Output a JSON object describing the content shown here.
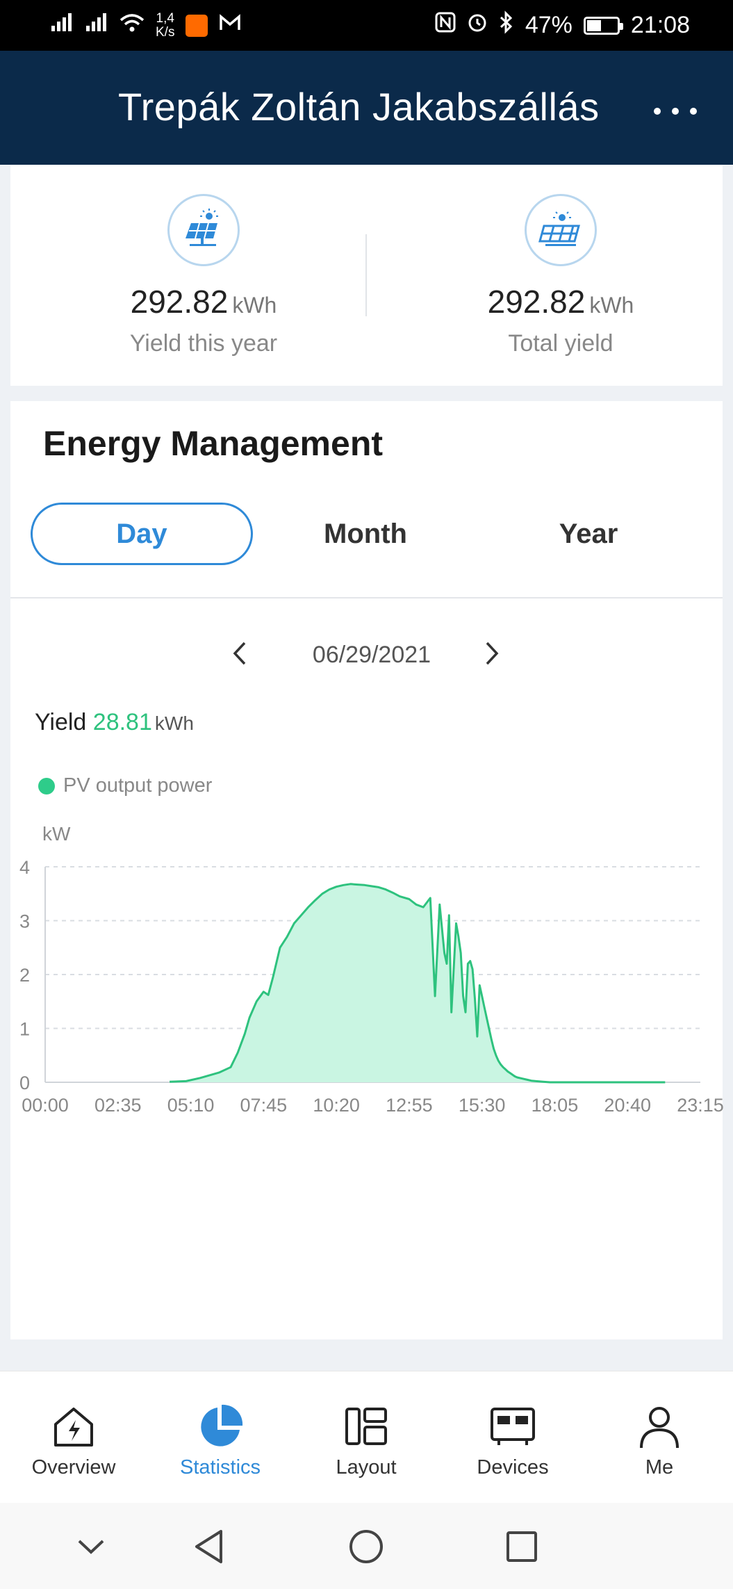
{
  "status_bar": {
    "net_speed_value": "1,4",
    "net_speed_unit": "K/s",
    "battery": "47%",
    "battery_level": 0.47,
    "time": "21:08"
  },
  "header": {
    "title": "Trepák Zoltán Jakabszállás",
    "more_icon": "more-horizontal-icon"
  },
  "yield_summary": {
    "this_year": {
      "value": "292.82",
      "unit": "kWh",
      "label": "Yield this year",
      "icon": "solar-panel-icon"
    },
    "total": {
      "value": "292.82",
      "unit": "kWh",
      "label": "Total yield",
      "icon": "solar-array-icon"
    }
  },
  "energy_management": {
    "title": "Energy Management",
    "tabs": [
      {
        "label": "Day",
        "active": true
      },
      {
        "label": "Month",
        "active": false
      },
      {
        "label": "Year",
        "active": false
      }
    ],
    "date": "06/29/2021",
    "yield_label": "Yield",
    "yield_value": "28.81",
    "yield_unit": "kWh"
  },
  "chart_data": {
    "type": "area",
    "ylabel": "kW",
    "ylim": [
      0,
      4
    ],
    "yticks": [
      "0",
      "1",
      "2",
      "3",
      "4"
    ],
    "xlim": [
      "00:00",
      "23:15"
    ],
    "xticks": [
      "00:00",
      "02:35",
      "05:10",
      "07:45",
      "10:20",
      "12:55",
      "15:30",
      "18:05",
      "20:40",
      "23:15"
    ],
    "grid": true,
    "series": [
      {
        "name": "PV output power",
        "color": "#2ec27e",
        "fill": "#c9f5e2",
        "x": [
          "04:25",
          "05:00",
          "05:30",
          "06:10",
          "06:35",
          "06:50",
          "07:05",
          "07:15",
          "07:30",
          "07:45",
          "07:55",
          "08:05",
          "08:20",
          "08:35",
          "08:50",
          "09:05",
          "09:20",
          "09:35",
          "09:50",
          "10:05",
          "10:20",
          "10:35",
          "10:50",
          "11:05",
          "11:20",
          "11:35",
          "11:50",
          "12:05",
          "12:20",
          "12:35",
          "12:55",
          "13:10",
          "13:25",
          "13:40",
          "13:50",
          "14:00",
          "14:10",
          "14:15",
          "14:20",
          "14:25",
          "14:35",
          "14:40",
          "14:45",
          "14:50",
          "14:55",
          "15:00",
          "15:05",
          "15:10",
          "15:15",
          "15:20",
          "15:25",
          "15:30",
          "15:35",
          "15:40",
          "15:45",
          "15:50",
          "15:55",
          "16:00",
          "16:05",
          "16:10",
          "16:15",
          "16:20",
          "16:25",
          "16:30",
          "16:35",
          "16:40",
          "16:45",
          "16:55",
          "17:05",
          "17:15",
          "17:25",
          "17:40",
          "17:55",
          "18:10",
          "18:25",
          "18:40",
          "18:55",
          "19:10",
          "19:25",
          "19:40",
          "19:55",
          "20:10",
          "20:25",
          "20:40",
          "21:00",
          "21:30",
          "22:00"
        ],
        "values": [
          0.01,
          0.02,
          0.08,
          0.18,
          0.28,
          0.55,
          0.9,
          1.2,
          1.5,
          1.68,
          1.62,
          1.95,
          2.5,
          2.7,
          2.95,
          3.1,
          3.25,
          3.38,
          3.5,
          3.58,
          3.63,
          3.66,
          3.68,
          3.67,
          3.66,
          3.64,
          3.62,
          3.58,
          3.52,
          3.45,
          3.4,
          3.3,
          3.25,
          3.42,
          1.6,
          3.3,
          2.4,
          2.2,
          3.1,
          1.3,
          2.95,
          2.7,
          2.4,
          1.6,
          1.3,
          2.2,
          2.25,
          2.1,
          1.55,
          0.85,
          1.8,
          1.6,
          1.4,
          1.2,
          1.0,
          0.8,
          0.62,
          0.5,
          0.4,
          0.33,
          0.28,
          0.24,
          0.2,
          0.17,
          0.14,
          0.11,
          0.09,
          0.07,
          0.05,
          0.03,
          0.02,
          0.01,
          0.0,
          0.0,
          0.0,
          0.0,
          0.0,
          0.0,
          0.0,
          0.0,
          0.0,
          0.0,
          0.0,
          0.0,
          0.0,
          0.0,
          0.0
        ]
      }
    ]
  },
  "bottom_nav": [
    {
      "label": "Overview",
      "icon": "overview-icon",
      "active": false
    },
    {
      "label": "Statistics",
      "icon": "statistics-icon",
      "active": true
    },
    {
      "label": "Layout",
      "icon": "layout-icon",
      "active": false
    },
    {
      "label": "Devices",
      "icon": "devices-icon",
      "active": false
    },
    {
      "label": "Me",
      "icon": "user-icon",
      "active": false
    }
  ],
  "colors": {
    "header_bg": "#0b2a4a",
    "accent_blue": "#2f8ad8",
    "pv_green": "#2ec27e"
  }
}
